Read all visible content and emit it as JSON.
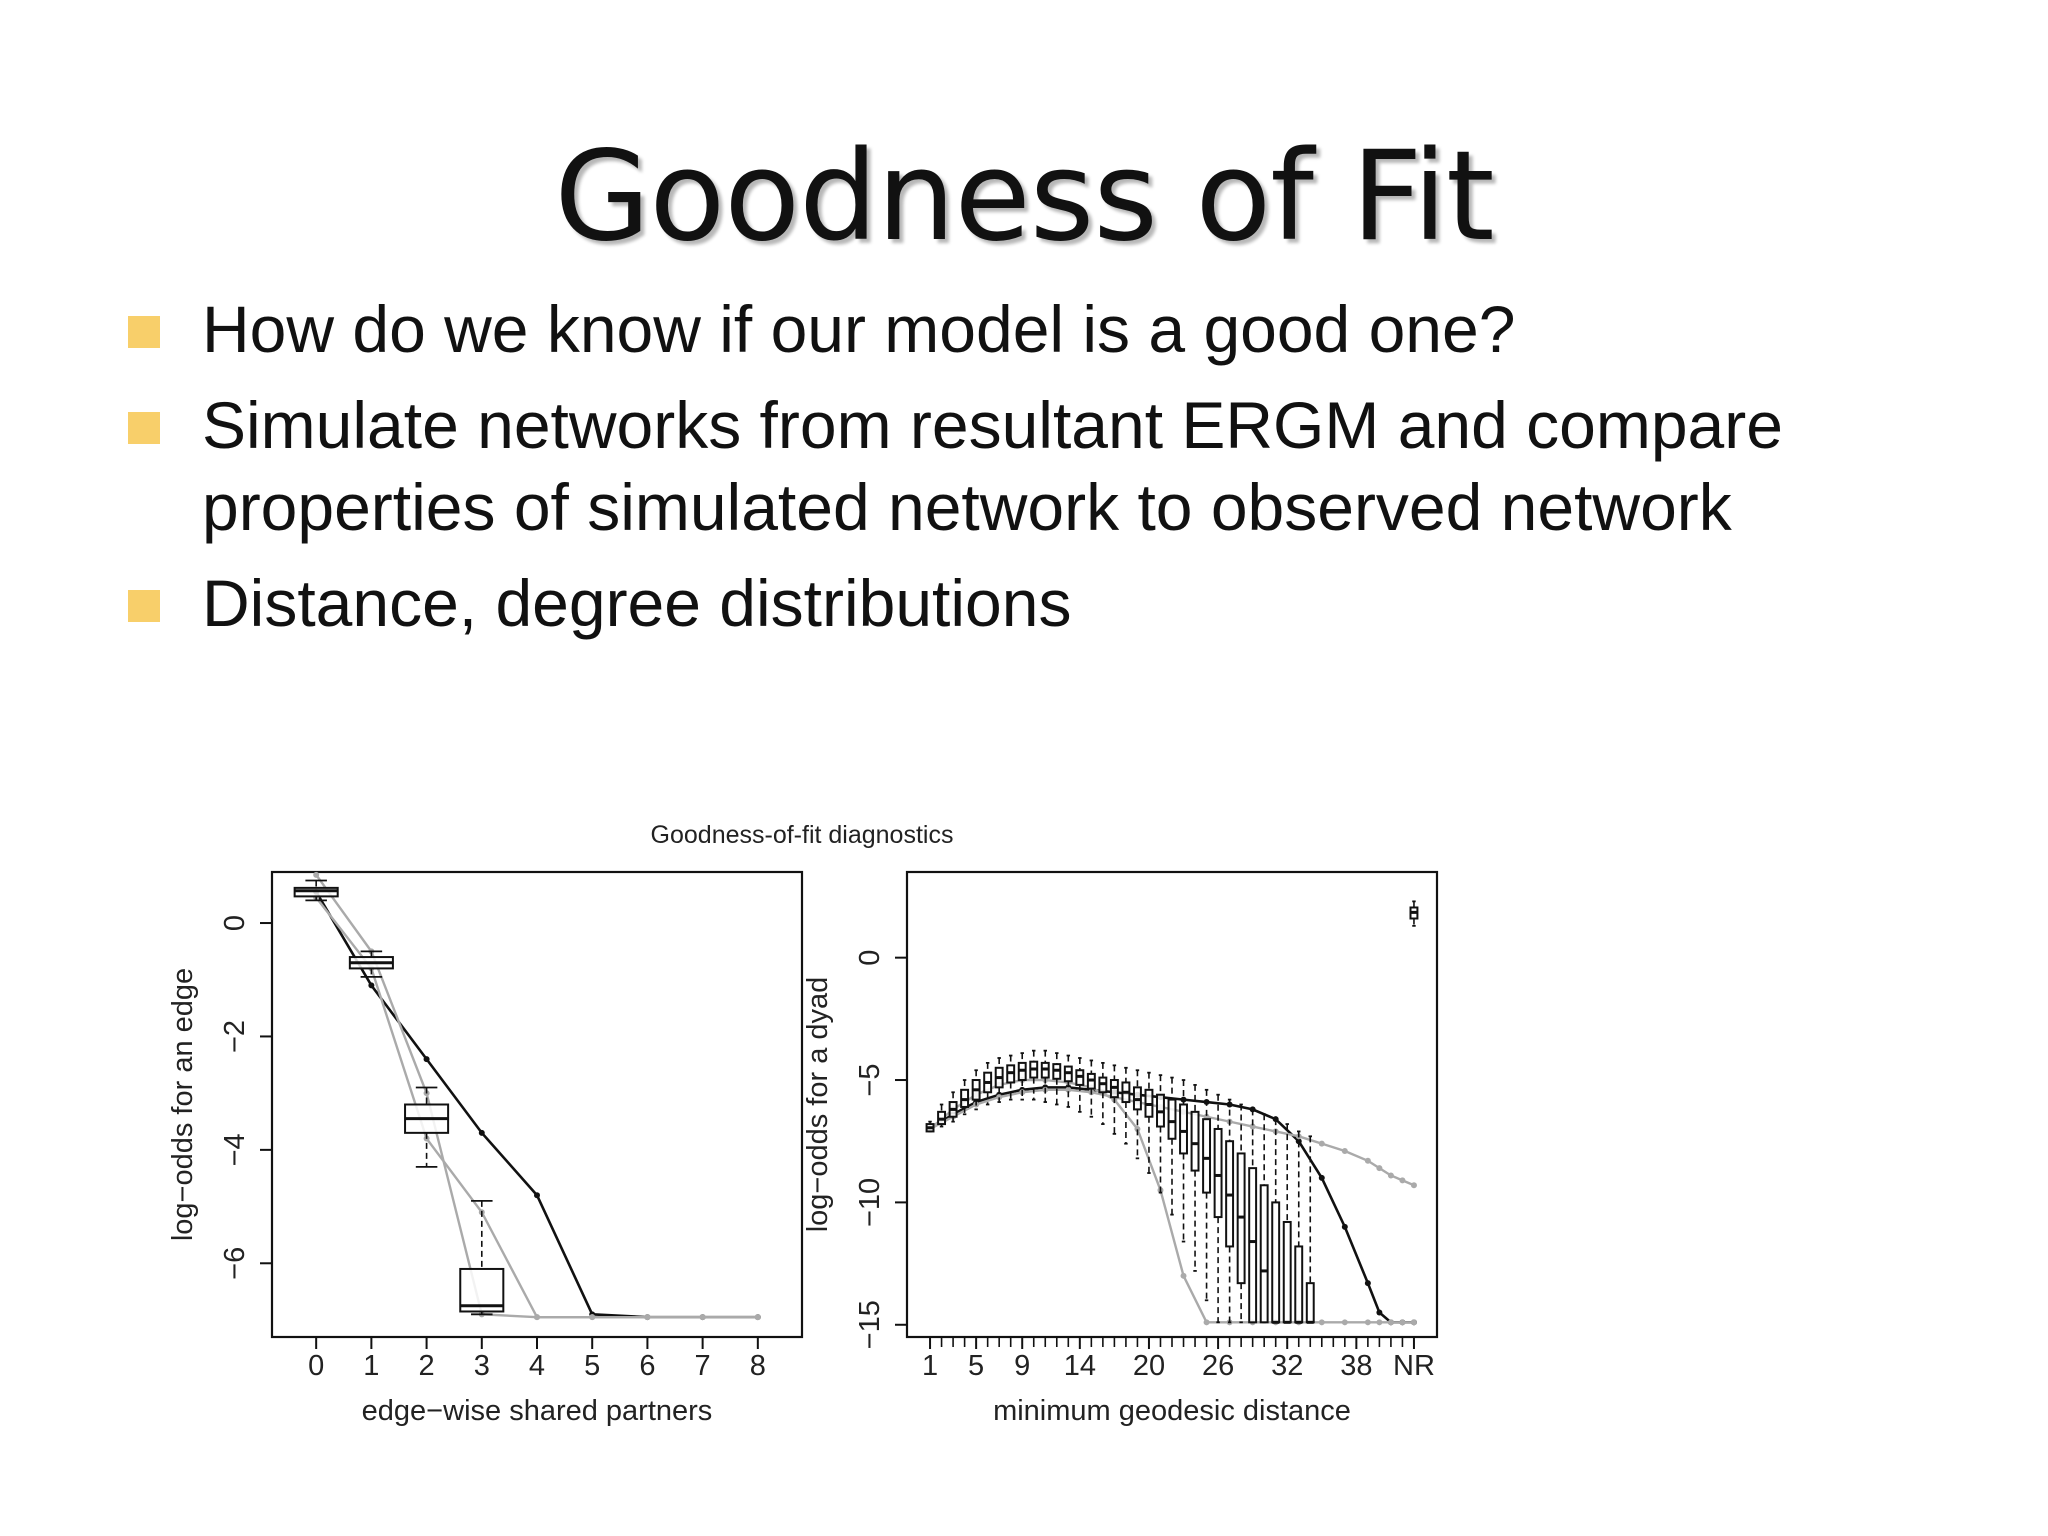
{
  "slide": {
    "title": "Goodness of Fit",
    "bullets": [
      "How do we know if our model is a good one?",
      "Simulate networks from resultant ERGM and compare properties of simulated network to observed network",
      "Distance, degree distributions"
    ],
    "bullet_color": "#f8cf6a"
  },
  "chart_data": [
    {
      "type": "line",
      "title": "Goodness-of-fit diagnostics",
      "xlabel": "edge−wise shared partners",
      "ylabel": "log−odds for an edge",
      "xlim": [
        -0.8,
        8.8
      ],
      "ylim": [
        -7.3,
        0.9
      ],
      "x_ticks": [
        0,
        1,
        2,
        3,
        4,
        5,
        6,
        7,
        8
      ],
      "y_ticks": [
        0,
        -2,
        -4,
        -6
      ],
      "y_tick_labels": [
        "0",
        "−2",
        "−4",
        "−6"
      ],
      "x": [
        0,
        1,
        2,
        3,
        4,
        5,
        6,
        7,
        8
      ],
      "series": [
        {
          "color": "#111111",
          "values": [
            0.55,
            -1.1,
            -2.4,
            -3.7,
            -4.8,
            -6.9,
            -6.95,
            -6.95,
            -6.95
          ]
        },
        {
          "color": "#aaaaaa",
          "values": [
            0.85,
            -0.5,
            -3.0,
            -6.9,
            -6.95,
            -6.95,
            -6.95,
            -6.95,
            -6.95
          ]
        },
        {
          "color": "#aaaaaa",
          "values": [
            0.45,
            -0.8,
            -3.8,
            -5.1,
            -6.95,
            -6.95,
            -6.95,
            -6.95,
            -6.95
          ]
        }
      ],
      "boxes": [
        {
          "x": 0,
          "min": 0.4,
          "q1": 0.47,
          "median": 0.57,
          "q3": 0.62,
          "max": 0.75
        },
        {
          "x": 1,
          "min": -0.95,
          "q1": -0.8,
          "median": -0.7,
          "q3": -0.6,
          "max": -0.5
        },
        {
          "x": 2,
          "min": -4.3,
          "q1": -3.7,
          "median": -3.45,
          "q3": -3.2,
          "max": -2.9
        },
        {
          "x": 3,
          "min": -6.9,
          "q1": -6.85,
          "median": -6.75,
          "q3": -6.1,
          "max": -4.9
        }
      ]
    },
    {
      "type": "line",
      "xlabel": "minimum geodesic distance",
      "ylabel": "log−odds for a dyad",
      "xlim": [
        -1,
        45
      ],
      "ylim": [
        -15.5,
        3.5
      ],
      "x_ticks": [
        1,
        5,
        9,
        14,
        20,
        26,
        32,
        38,
        43
      ],
      "x_tick_labels": [
        "1",
        "5",
        "9",
        "14",
        "20",
        "26",
        "32",
        "38",
        "NR"
      ],
      "y_ticks": [
        0,
        -5,
        -10,
        -15
      ],
      "y_tick_labels": [
        "0",
        "−5",
        "−10",
        "−15"
      ],
      "x": [
        1,
        3,
        5,
        7,
        9,
        11,
        13,
        15,
        17,
        19,
        21,
        23,
        25,
        27,
        29,
        31,
        33,
        35,
        37,
        39,
        40,
        41,
        42,
        43
      ],
      "series": [
        {
          "color": "#111111",
          "values": [
            -7.0,
            -6.4,
            -5.9,
            -5.6,
            -5.4,
            -5.3,
            -5.3,
            -5.4,
            -5.5,
            -5.6,
            -5.7,
            -5.8,
            -5.9,
            -6.0,
            -6.2,
            -6.6,
            -7.5,
            -9.0,
            -11.0,
            -13.3,
            -14.5,
            -14.9,
            -14.9,
            -14.9
          ]
        },
        {
          "color": "#aaaaaa",
          "values": [
            -7.0,
            -6.5,
            -6.0,
            -5.7,
            -5.5,
            -5.4,
            -5.4,
            -5.5,
            -5.7,
            -5.9,
            -6.1,
            -6.3,
            -6.5,
            -6.7,
            -6.9,
            -7.1,
            -7.3,
            -7.6,
            -7.9,
            -8.3,
            -8.6,
            -8.9,
            -9.1,
            -9.3
          ]
        },
        {
          "color": "#aaaaaa",
          "values": [
            -7.0,
            -6.2,
            -5.6,
            -5.2,
            -5.0,
            -5.0,
            -5.1,
            -5.3,
            -5.8,
            -7.0,
            -9.5,
            -13.0,
            -14.9,
            -14.9,
            -14.9,
            -14.9,
            -14.9,
            -14.9,
            -14.9,
            -14.9,
            -14.9,
            -14.9,
            -14.9,
            -14.9
          ]
        }
      ],
      "boxes": [
        {
          "x": 1,
          "q1": -7.1,
          "median": -6.95,
          "q3": -6.8,
          "min": -7.1,
          "max": -6.7
        },
        {
          "x": 2,
          "q1": -6.8,
          "median": -6.6,
          "q3": -6.3,
          "min": -6.9,
          "max": -6.0
        },
        {
          "x": 3,
          "q1": -6.5,
          "median": -6.2,
          "q3": -5.9,
          "min": -6.7,
          "max": -5.5
        },
        {
          "x": 4,
          "q1": -6.1,
          "median": -5.8,
          "q3": -5.4,
          "min": -6.4,
          "max": -5.0
        },
        {
          "x": 5,
          "q1": -5.8,
          "median": -5.4,
          "q3": -5.0,
          "min": -6.2,
          "max": -4.6
        },
        {
          "x": 6,
          "q1": -5.5,
          "median": -5.1,
          "q3": -4.7,
          "min": -6.0,
          "max": -4.3
        },
        {
          "x": 7,
          "q1": -5.3,
          "median": -4.9,
          "q3": -4.5,
          "min": -5.9,
          "max": -4.1
        },
        {
          "x": 8,
          "q1": -5.1,
          "median": -4.7,
          "q3": -4.4,
          "min": -5.8,
          "max": -4.0
        },
        {
          "x": 9,
          "q1": -5.0,
          "median": -4.6,
          "q3": -4.3,
          "min": -5.8,
          "max": -3.9
        },
        {
          "x": 10,
          "q1": -4.9,
          "median": -4.55,
          "q3": -4.25,
          "min": -5.8,
          "max": -3.8
        },
        {
          "x": 11,
          "q1": -4.9,
          "median": -4.55,
          "q3": -4.3,
          "min": -5.9,
          "max": -3.8
        },
        {
          "x": 12,
          "q1": -4.95,
          "median": -4.6,
          "q3": -4.35,
          "min": -6.0,
          "max": -3.9
        },
        {
          "x": 13,
          "q1": -5.05,
          "median": -4.7,
          "q3": -4.45,
          "min": -6.1,
          "max": -4.0
        },
        {
          "x": 14,
          "q1": -5.2,
          "median": -4.85,
          "q3": -4.6,
          "min": -6.3,
          "max": -4.1
        },
        {
          "x": 15,
          "q1": -5.35,
          "median": -5.0,
          "q3": -4.75,
          "min": -6.5,
          "max": -4.2
        },
        {
          "x": 16,
          "q1": -5.5,
          "median": -5.15,
          "q3": -4.9,
          "min": -6.8,
          "max": -4.3
        },
        {
          "x": 17,
          "q1": -5.7,
          "median": -5.3,
          "q3": -5.0,
          "min": -7.2,
          "max": -4.4
        },
        {
          "x": 18,
          "q1": -5.9,
          "median": -5.5,
          "q3": -5.1,
          "min": -7.6,
          "max": -4.5
        },
        {
          "x": 19,
          "q1": -6.2,
          "median": -5.8,
          "q3": -5.3,
          "min": -8.2,
          "max": -4.6
        },
        {
          "x": 20,
          "q1": -6.5,
          "median": -6.0,
          "q3": -5.4,
          "min": -8.8,
          "max": -4.7
        },
        {
          "x": 21,
          "q1": -6.9,
          "median": -6.3,
          "q3": -5.6,
          "min": -9.6,
          "max": -4.8
        },
        {
          "x": 22,
          "q1": -7.4,
          "median": -6.7,
          "q3": -5.8,
          "min": -10.5,
          "max": -4.9
        },
        {
          "x": 23,
          "q1": -8.0,
          "median": -7.1,
          "q3": -6.0,
          "min": -11.6,
          "max": -5.0
        },
        {
          "x": 24,
          "q1": -8.7,
          "median": -7.6,
          "q3": -6.3,
          "min": -12.8,
          "max": -5.2
        },
        {
          "x": 25,
          "q1": -9.6,
          "median": -8.2,
          "q3": -6.6,
          "min": -14.0,
          "max": -5.4
        },
        {
          "x": 26,
          "q1": -10.6,
          "median": -8.9,
          "q3": -7.0,
          "min": -14.9,
          "max": -5.6
        },
        {
          "x": 27,
          "q1": -11.8,
          "median": -9.7,
          "q3": -7.5,
          "min": -14.9,
          "max": -5.8
        },
        {
          "x": 28,
          "q1": -13.3,
          "median": -10.6,
          "q3": -8.0,
          "min": -14.9,
          "max": -6.0
        },
        {
          "x": 29,
          "q1": -14.9,
          "median": -11.6,
          "q3": -8.6,
          "min": -14.9,
          "max": -6.2
        },
        {
          "x": 30,
          "q1": -14.9,
          "median": -12.8,
          "q3": -9.3,
          "min": -14.9,
          "max": -6.4
        },
        {
          "x": 31,
          "q1": -14.9,
          "median": -14.9,
          "q3": -10.0,
          "min": -14.9,
          "max": -6.6
        },
        {
          "x": 32,
          "q1": -14.9,
          "median": -14.9,
          "q3": -10.8,
          "min": -14.9,
          "max": -6.8
        },
        {
          "x": 33,
          "q1": -14.9,
          "median": -14.9,
          "q3": -11.8,
          "min": -14.9,
          "max": -7.1
        },
        {
          "x": 34,
          "q1": -14.9,
          "median": -14.9,
          "q3": -13.3,
          "min": -14.9,
          "max": -7.3
        },
        {
          "x": 43,
          "q1": 1.6,
          "median": 1.85,
          "q3": 2.05,
          "min": 1.3,
          "max": 2.3
        }
      ]
    }
  ]
}
